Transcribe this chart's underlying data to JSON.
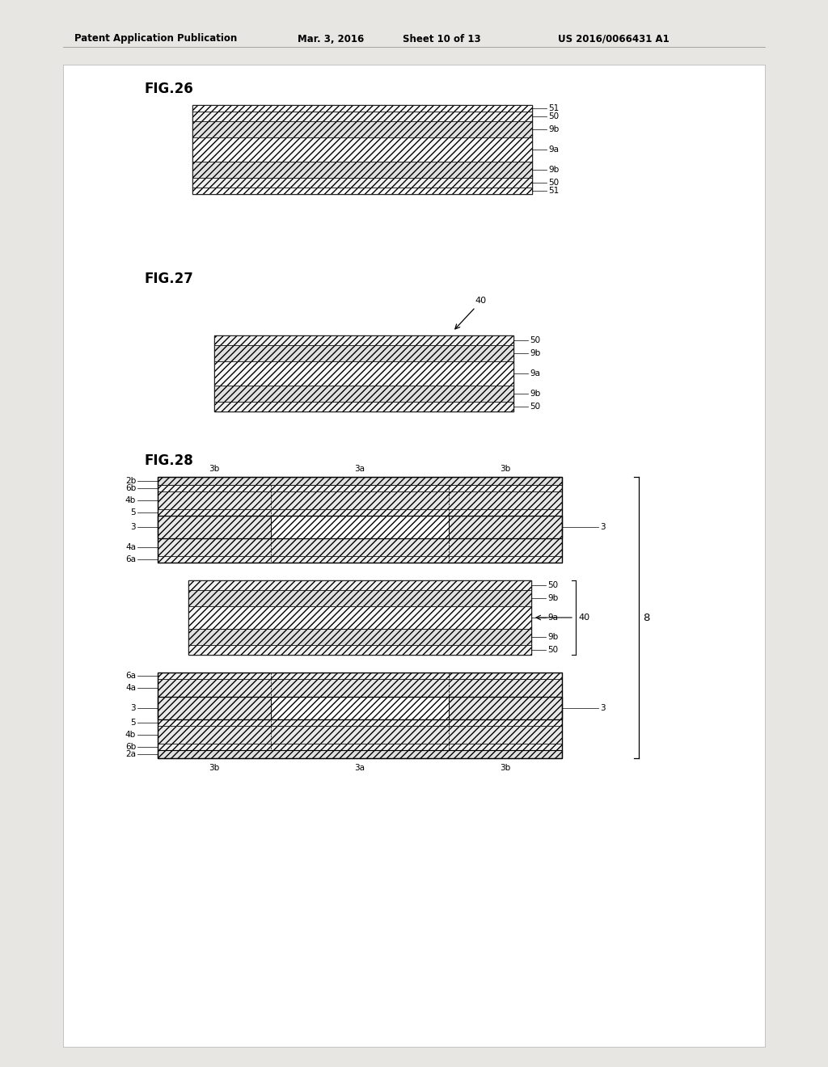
{
  "bg_color": "#e8e6e2",
  "page_bg": "#ffffff",
  "header_left": "Patent Application Publication",
  "header_mid": "Mar. 3, 2016",
  "header_sheet": "Sheet 10 of 13",
  "header_patent": "US 2016/0066431 A1",
  "fig26_title": "FIG.26",
  "fig27_title": "FIG.27",
  "fig28_title": "FIG.28",
  "hatch_fwd": "////",
  "hatch_cross": "xxxx",
  "ec": "#000000",
  "lc": "#000000"
}
